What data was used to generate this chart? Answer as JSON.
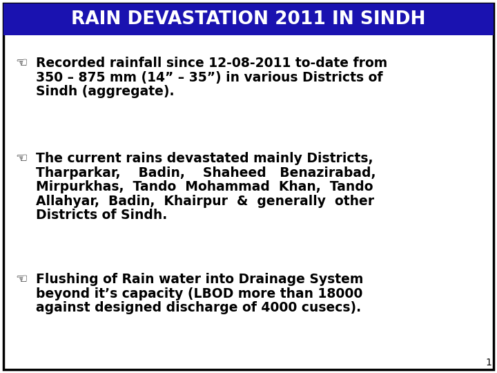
{
  "title": "RAIN DEVASTATION 2011 IN SINDH",
  "title_bg_color": "#1a12b0",
  "title_text_color": "#ffffff",
  "slide_bg_color": "#ffffff",
  "border_color": "#000000",
  "text_color": "#000000",
  "bullet_char": "☜",
  "page_number": "1",
  "font_size_title": 19,
  "font_size_body": 13.5,
  "font_size_page": 10,
  "bullet1_lines": [
    "Recorded rainfall since 12-08-2011 to-date from",
    "350 – 875 mm (14” – 35”) in various Districts of",
    "Sindh (aggregate)."
  ],
  "bullet2_lines": [
    "The current rains devastated mainly Districts,",
    "Tharparkar,    Badin,    Shaheed   Benazirabad,",
    "Mirpurkhas,  Tando  Mohammad  Khan,  Tando",
    "Allahyar,  Badin,  Khairpur  &  generally  other",
    "Districts of Sindh."
  ],
  "bullet3_lines": [
    "Flushing of Rain water into Drainage System",
    "beyond it’s capacity (LBOD more than 18000",
    "against designed discharge of 4000 cusecs)."
  ]
}
